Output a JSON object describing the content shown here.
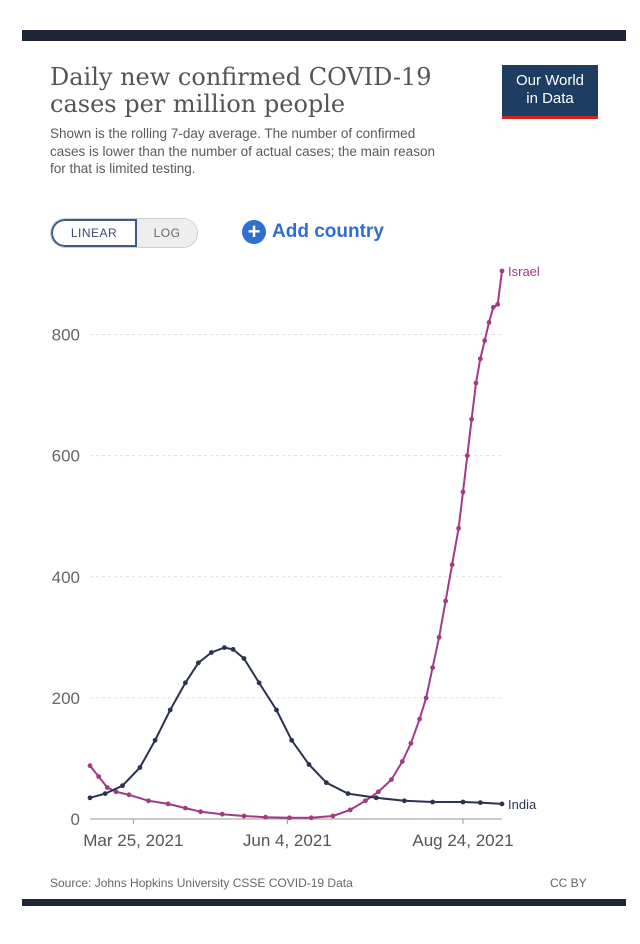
{
  "header": {
    "title": "Daily new confirmed COVID-19 cases per million people",
    "subtitle": "Shown is the rolling 7-day average. The number of confirmed cases is lower than the number of actual cases; the main reason for that is limited testing.",
    "logo_line1": "Our World",
    "logo_line2": "in Data"
  },
  "controls": {
    "linear_label": "LINEAR",
    "log_label": "LOG",
    "add_country_label": "Add country"
  },
  "footer": {
    "source": "Source: Johns Hopkins University CSSE COVID-19 Data",
    "license": "CC BY"
  },
  "colors": {
    "india": "#2c3350",
    "israel": "#a23a85",
    "grid": "#dddddd",
    "axis_text": "#666666"
  },
  "chart_data": {
    "type": "line",
    "title": "Daily new confirmed COVID-19 cases per million people",
    "xlabel": "",
    "ylabel": "",
    "ylim": [
      0,
      900
    ],
    "yticks": [
      0,
      200,
      400,
      600,
      800
    ],
    "x_range": [
      "2021-03-05",
      "2021-09-11"
    ],
    "x_ticks": [
      {
        "date": "2021-03-25",
        "label": "Mar 25, 2021"
      },
      {
        "date": "2021-06-04",
        "label": "Jun 4, 2021"
      },
      {
        "date": "2021-08-24",
        "label": "Aug 24, 2021"
      }
    ],
    "grid": true,
    "series": [
      {
        "name": "Israel",
        "color": "#a23a85",
        "points": [
          [
            "2021-03-05",
            88
          ],
          [
            "2021-03-09",
            70
          ],
          [
            "2021-03-13",
            52
          ],
          [
            "2021-03-17",
            45
          ],
          [
            "2021-03-23",
            40
          ],
          [
            "2021-04-01",
            30
          ],
          [
            "2021-04-10",
            25
          ],
          [
            "2021-04-18",
            18
          ],
          [
            "2021-04-25",
            12
          ],
          [
            "2021-05-05",
            8
          ],
          [
            "2021-05-15",
            5
          ],
          [
            "2021-05-25",
            3
          ],
          [
            "2021-06-05",
            2
          ],
          [
            "2021-06-15",
            2
          ],
          [
            "2021-06-25",
            5
          ],
          [
            "2021-07-03",
            15
          ],
          [
            "2021-07-10",
            30
          ],
          [
            "2021-07-16",
            45
          ],
          [
            "2021-07-22",
            65
          ],
          [
            "2021-07-27",
            95
          ],
          [
            "2021-07-31",
            125
          ],
          [
            "2021-08-04",
            165
          ],
          [
            "2021-08-07",
            200
          ],
          [
            "2021-08-10",
            250
          ],
          [
            "2021-08-13",
            300
          ],
          [
            "2021-08-16",
            360
          ],
          [
            "2021-08-19",
            420
          ],
          [
            "2021-08-22",
            480
          ],
          [
            "2021-08-24",
            540
          ],
          [
            "2021-08-26",
            600
          ],
          [
            "2021-08-28",
            660
          ],
          [
            "2021-08-30",
            720
          ],
          [
            "2021-09-01",
            760
          ],
          [
            "2021-09-03",
            790
          ],
          [
            "2021-09-05",
            820
          ],
          [
            "2021-09-07",
            845
          ],
          [
            "2021-09-09",
            850
          ],
          [
            "2021-09-11",
            905
          ]
        ]
      },
      {
        "name": "India",
        "color": "#2c3350",
        "points": [
          [
            "2021-03-05",
            35
          ],
          [
            "2021-03-12",
            42
          ],
          [
            "2021-03-20",
            55
          ],
          [
            "2021-03-28",
            85
          ],
          [
            "2021-04-04",
            130
          ],
          [
            "2021-04-11",
            180
          ],
          [
            "2021-04-18",
            225
          ],
          [
            "2021-04-24",
            258
          ],
          [
            "2021-04-30",
            275
          ],
          [
            "2021-05-06",
            283
          ],
          [
            "2021-05-10",
            280
          ],
          [
            "2021-05-15",
            265
          ],
          [
            "2021-05-22",
            225
          ],
          [
            "2021-05-30",
            180
          ],
          [
            "2021-06-06",
            130
          ],
          [
            "2021-06-14",
            90
          ],
          [
            "2021-06-22",
            60
          ],
          [
            "2021-07-02",
            42
          ],
          [
            "2021-07-15",
            35
          ],
          [
            "2021-07-28",
            30
          ],
          [
            "2021-08-10",
            28
          ],
          [
            "2021-08-24",
            28
          ],
          [
            "2021-09-01",
            27
          ],
          [
            "2021-09-11",
            25
          ]
        ]
      }
    ]
  }
}
